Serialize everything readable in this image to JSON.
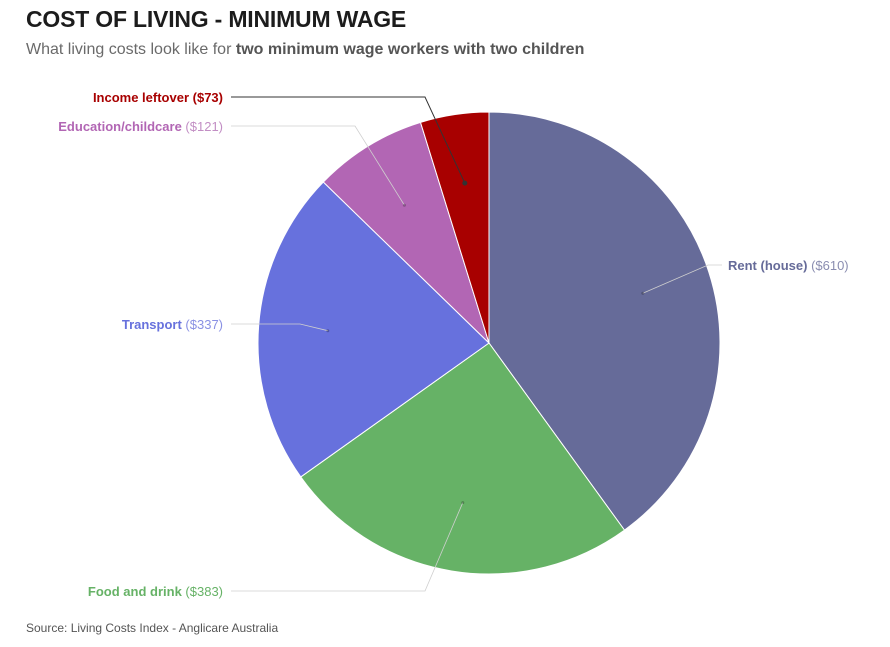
{
  "header": {
    "title": "COST OF LIVING - MINIMUM WAGE",
    "subtitle_pre": "What living costs look like for ",
    "subtitle_bold": "two minimum wage workers with two children"
  },
  "footer": {
    "source": "Source: Living Costs Index - Anglicare Australia"
  },
  "chart_data": {
    "type": "pie",
    "title": "COST OF LIVING - MINIMUM WAGE",
    "subtitle": "What living costs look like for two minimum wage workers with two children",
    "start": "top",
    "direction": "clockwise",
    "slices": [
      {
        "name": "Rent (house)",
        "value": 610,
        "value_label": "($610)",
        "color": "#666b99",
        "label_color": "#666b99",
        "value_color": "#8a8db0",
        "label_side": "right",
        "emphasis": false
      },
      {
        "name": "Food and drink",
        "value": 383,
        "value_label": "($383)",
        "color": "#66b266",
        "label_color": "#66b266",
        "value_color": "#66b266",
        "label_side": "left",
        "emphasis": false
      },
      {
        "name": "Transport",
        "value": 337,
        "value_label": "($337)",
        "color": "#6771dd",
        "label_color": "#6771dd",
        "value_color": "#8a91e4",
        "label_side": "left",
        "emphasis": false
      },
      {
        "name": "Education/childcare",
        "value": 121,
        "value_label": "($121)",
        "color": "#b266b4",
        "label_color": "#b266b4",
        "value_color": "#c28ec4",
        "label_side": "left",
        "emphasis": false
      },
      {
        "name": "Income leftover",
        "value": 73,
        "value_label": "($73)",
        "color": "#a80000",
        "label_color": "#a80000",
        "value_color": "#a80000",
        "label_side": "left",
        "emphasis": true
      }
    ]
  }
}
